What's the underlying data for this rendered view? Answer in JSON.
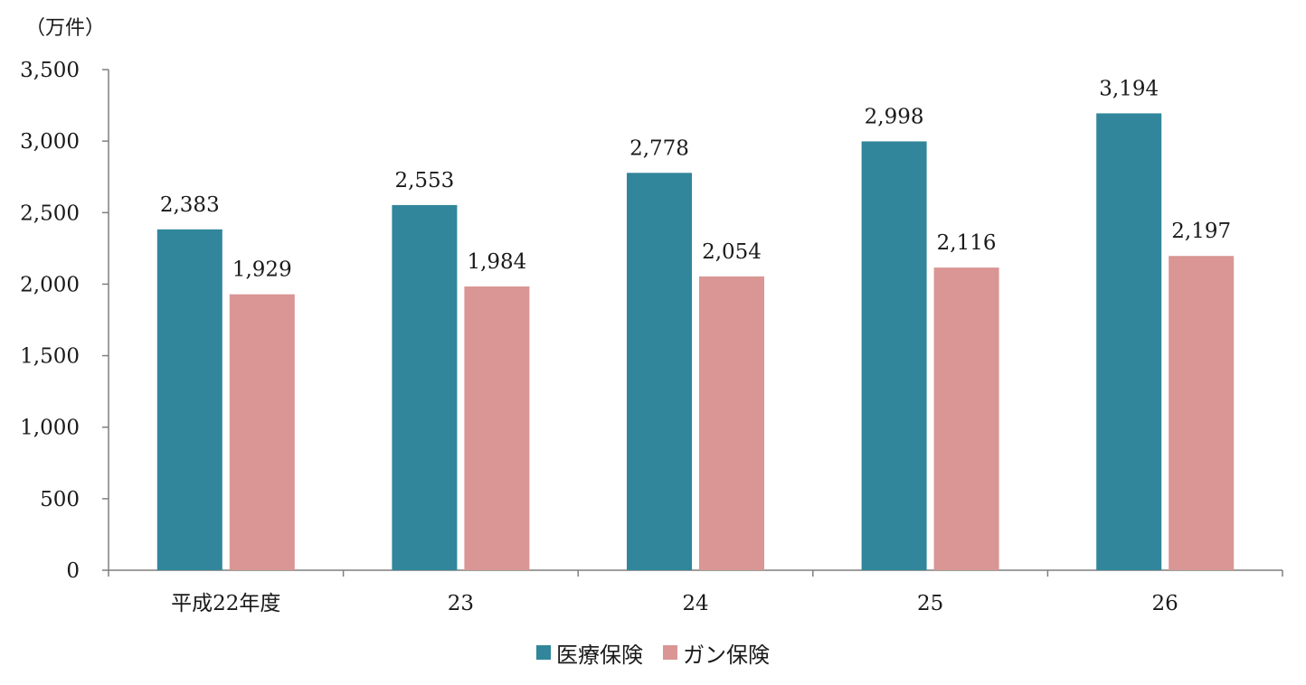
{
  "chart_data": {
    "type": "bar",
    "unit_label": "（万件）",
    "categories": [
      "平成22年度",
      "23",
      "24",
      "25",
      "26"
    ],
    "series": [
      {
        "name": "医療保険",
        "color": "#31869b",
        "values": [
          2383,
          2553,
          2778,
          2998,
          3194
        ],
        "labels": [
          "2,383",
          "2,553",
          "2,778",
          "2,998",
          "3,194"
        ]
      },
      {
        "name": "ガン保険",
        "color": "#d99694",
        "values": [
          1929,
          1984,
          2054,
          2116,
          2197
        ],
        "labels": [
          "1,929",
          "1,984",
          "2,054",
          "2,116",
          "2,197"
        ]
      }
    ],
    "ylim": [
      0,
      3500
    ],
    "yticks": [
      0,
      500,
      1000,
      1500,
      2000,
      2500,
      3000,
      3500
    ],
    "ytick_labels": [
      "0",
      "500",
      "1,000",
      "1,500",
      "2,000",
      "2,500",
      "3,000",
      "3,500"
    ],
    "grid": false,
    "legend_position": "bottom-center",
    "axis_color": "#7f7f7f"
  }
}
